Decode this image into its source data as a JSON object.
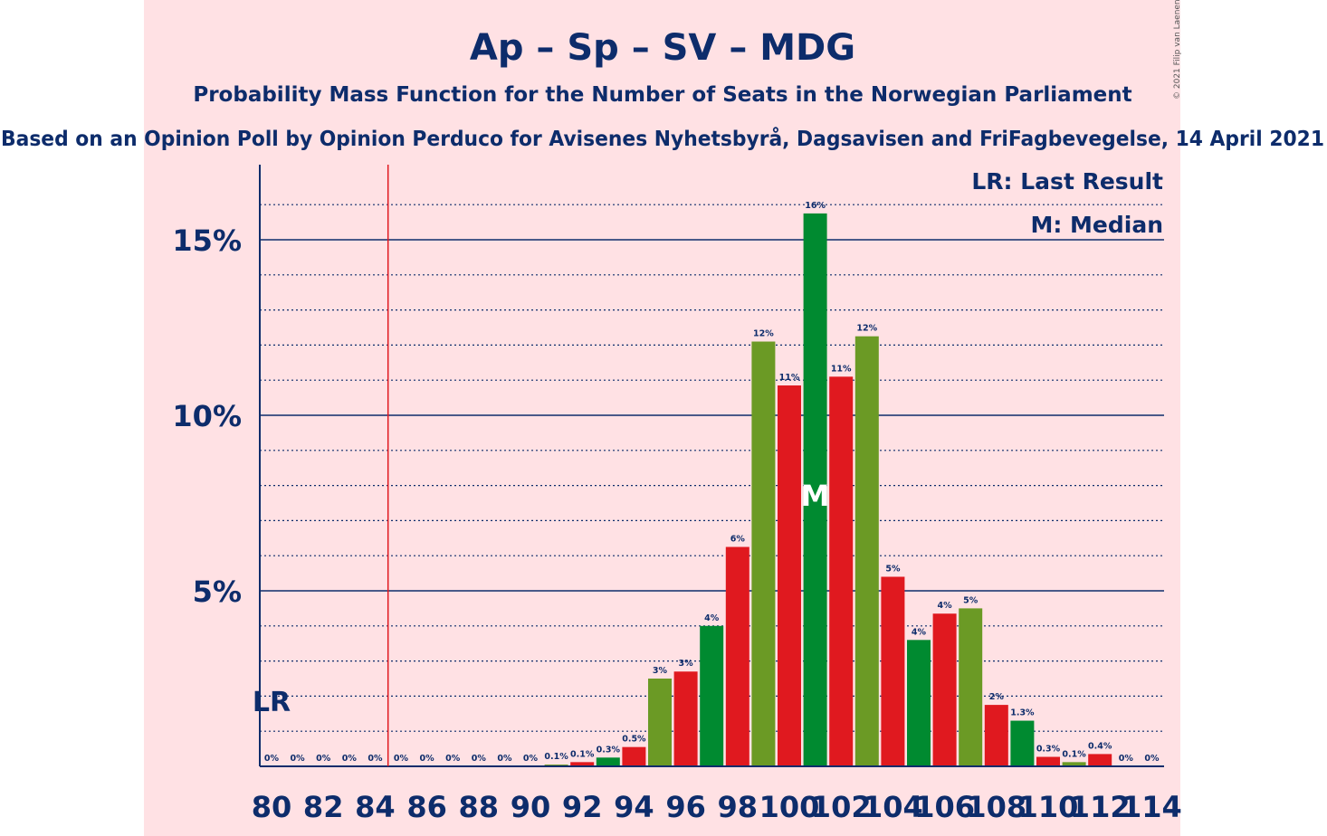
{
  "colors": {
    "background": "#ffe1e4",
    "text": "#0d2c6b",
    "red": "#e0191f",
    "green": "#008a30",
    "olive": "#6b9a25",
    "lr_line": "#e0191f"
  },
  "chart_data": {
    "type": "bar",
    "title": "Ap – Sp – SV – MDG",
    "subtitle": "Probability Mass Function for the Number of Seats in the Norwegian Parliament",
    "subtitle2": "Based on an Opinion Poll by Opinion Perduco for Avisenes Nyhetsbyrå, Dagsavisen and FriFagbevegelse, 14 April 2021",
    "copyright": "© 2021 Filip van Laenen",
    "legend": [
      "LR: Last Result",
      "M: Median"
    ],
    "legend_position": "top-right",
    "last_result": 85,
    "last_result_label": "LR",
    "median": 101,
    "median_label": "M",
    "xlim": [
      80,
      114
    ],
    "ylim": [
      0,
      17
    ],
    "y_major_ticks": [
      5,
      10,
      15
    ],
    "y_tick_labels": [
      "5%",
      "10%",
      "15%"
    ],
    "x_tick_labels": [
      "80",
      "82",
      "84",
      "86",
      "88",
      "90",
      "92",
      "94",
      "96",
      "98",
      "100",
      "102",
      "104",
      "106",
      "108",
      "110",
      "112",
      "114"
    ],
    "x_ticks": [
      80,
      82,
      84,
      86,
      88,
      90,
      92,
      94,
      96,
      98,
      100,
      102,
      104,
      106,
      108,
      110,
      112,
      114
    ],
    "seats": [
      80,
      81,
      82,
      83,
      84,
      85,
      86,
      87,
      88,
      89,
      90,
      91,
      92,
      93,
      94,
      95,
      96,
      97,
      98,
      99,
      100,
      101,
      102,
      103,
      104,
      105,
      106,
      107,
      108,
      109,
      110,
      111,
      112,
      113,
      114
    ],
    "values": [
      0,
      0,
      0,
      0,
      0,
      0,
      0,
      0,
      0,
      0,
      0,
      0.05,
      0.12,
      0.25,
      0.55,
      2.5,
      2.7,
      4.0,
      6.25,
      12.1,
      10.85,
      15.75,
      11.1,
      12.25,
      5.4,
      3.6,
      4.35,
      4.5,
      1.75,
      1.3,
      0.27,
      0.12,
      0.35,
      0,
      0
    ],
    "labels": [
      "0%",
      "0%",
      "0%",
      "0%",
      "0%",
      "0%",
      "0%",
      "0%",
      "0%",
      "0%",
      "0%",
      "0.1%",
      "0.1%",
      "0.3%",
      "0.5%",
      "3%",
      "3%",
      "4%",
      "6%",
      "12%",
      "11%",
      "16%",
      "11%",
      "12%",
      "5%",
      "4%",
      "4%",
      "5%",
      "2%",
      "1.3%",
      "0.3%",
      "0.1%",
      "0.4%",
      "0%",
      "0%"
    ],
    "bar_colors": [
      "red",
      "green",
      "olive",
      "red",
      "green",
      "olive",
      "red",
      "green",
      "olive",
      "red",
      "green",
      "olive",
      "red",
      "green",
      "red",
      "olive",
      "red",
      "green",
      "red",
      "olive",
      "red",
      "green",
      "red",
      "olive",
      "red",
      "green",
      "red",
      "olive",
      "red",
      "green",
      "red",
      "olive",
      "red",
      "green",
      "olive"
    ]
  }
}
